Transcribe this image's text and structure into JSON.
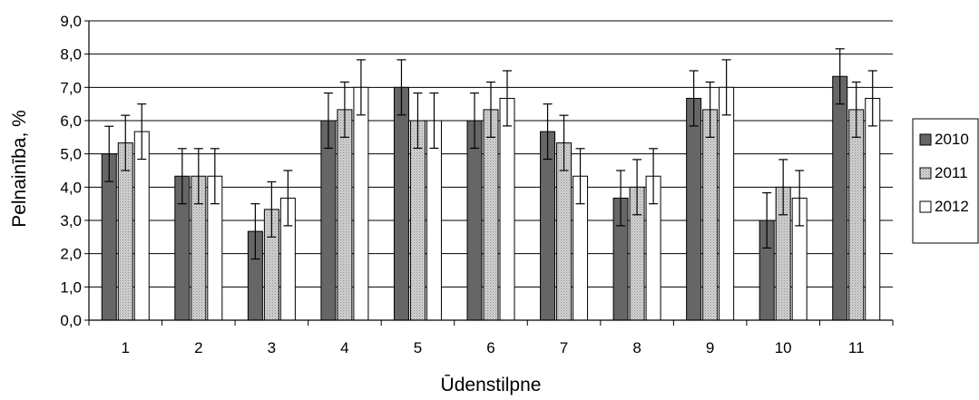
{
  "chart_data": {
    "type": "bar",
    "title": "",
    "xlabel": "Ūdenstilpne",
    "ylabel": "Pelnainība, %",
    "ylim": [
      0,
      9
    ],
    "ytick_values": [
      0,
      1,
      2,
      3,
      4,
      5,
      6,
      7,
      8,
      9
    ],
    "ytick_labels": [
      "0,0",
      "1,0",
      "2,0",
      "3,0",
      "4,0",
      "5,0",
      "6,0",
      "7,0",
      "8,0",
      "9,0"
    ],
    "categories": [
      "1",
      "2",
      "3",
      "4",
      "5",
      "6",
      "7",
      "8",
      "9",
      "10",
      "11"
    ],
    "grid": "horizontal",
    "legend_position": "right",
    "series": [
      {
        "name": "2010",
        "color": "#666666",
        "pattern": "solid",
        "values": [
          5.0,
          4.33,
          2.67,
          6.0,
          7.0,
          6.0,
          5.67,
          3.67,
          6.67,
          3.0,
          7.33
        ],
        "errors": [
          0.83,
          0.83,
          0.83,
          0.83,
          0.83,
          0.83,
          0.83,
          0.83,
          0.83,
          0.83,
          0.83
        ]
      },
      {
        "name": "2011",
        "color": "#c8c8c8",
        "pattern": "dotted",
        "values": [
          5.33,
          4.33,
          3.33,
          6.33,
          6.0,
          6.33,
          5.33,
          4.0,
          6.33,
          4.0,
          6.33
        ],
        "errors": [
          0.83,
          0.83,
          0.83,
          0.83,
          0.83,
          0.83,
          0.83,
          0.83,
          0.83,
          0.83,
          0.83
        ]
      },
      {
        "name": "2012",
        "color": "#ffffff",
        "pattern": "solid",
        "values": [
          5.67,
          4.33,
          3.67,
          7.0,
          6.0,
          6.67,
          4.33,
          4.33,
          7.0,
          3.67,
          6.67
        ],
        "errors": [
          0.83,
          0.83,
          0.83,
          0.83,
          0.83,
          0.83,
          0.83,
          0.83,
          0.83,
          0.83,
          0.83
        ]
      }
    ]
  }
}
